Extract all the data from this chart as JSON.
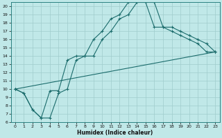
{
  "xlabel": "Humidex (Indice chaleur)",
  "bg_color": "#c0e8e8",
  "line_color": "#1a6b6b",
  "grid_color": "#a0cccc",
  "xlim": [
    -0.5,
    23.5
  ],
  "ylim": [
    6,
    20.5
  ],
  "xticks": [
    0,
    1,
    2,
    3,
    4,
    5,
    6,
    7,
    8,
    9,
    10,
    11,
    12,
    13,
    14,
    15,
    16,
    17,
    18,
    19,
    20,
    21,
    22,
    23
  ],
  "yticks": [
    6,
    7,
    8,
    9,
    10,
    11,
    12,
    13,
    14,
    15,
    16,
    17,
    18,
    19,
    20
  ],
  "line1_x": [
    0,
    1,
    2,
    3,
    4,
    5,
    6,
    7,
    8,
    9,
    10,
    11,
    12,
    13,
    14,
    15,
    16,
    17,
    18,
    19,
    20,
    21,
    22,
    23
  ],
  "line1_y": [
    10,
    9.5,
    7.5,
    6.5,
    6.5,
    9.5,
    10,
    13.5,
    14,
    14,
    16,
    17,
    18.5,
    19.0,
    20.5,
    20.5,
    20.5,
    17.5,
    17.5,
    17.0,
    16.5,
    16.0,
    15.5,
    14.5
  ],
  "line2_x": [
    0,
    1,
    2,
    3,
    4,
    5,
    6,
    7,
    8,
    9,
    10,
    11,
    12,
    13,
    14,
    15,
    16,
    17,
    18,
    19,
    20,
    21,
    22,
    23
  ],
  "line2_y": [
    10,
    9.5,
    7.5,
    6.5,
    9.8,
    9.8,
    13.5,
    14.0,
    14.0,
    16.0,
    17.0,
    18.5,
    19.0,
    20.5,
    20.5,
    20.5,
    17.5,
    17.5,
    17.0,
    16.5,
    16.0,
    15.5,
    14.5,
    14.5
  ],
  "line3_x": [
    0,
    23
  ],
  "line3_y": [
    10,
    14.5
  ]
}
